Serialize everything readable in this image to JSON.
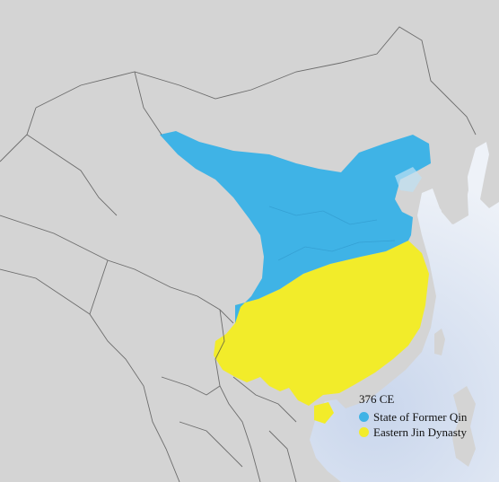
{
  "map": {
    "legend": {
      "title": "376 CE",
      "items": [
        {
          "label": "State of Former Qin",
          "color": "#3fb3e6"
        },
        {
          "label": "Eastern Jin Dynasty",
          "color": "#f2ec2a"
        }
      ]
    },
    "colors": {
      "sea": "#dde6f3",
      "land": "#d3d3d3",
      "borders": "#4a4a4a"
    }
  }
}
